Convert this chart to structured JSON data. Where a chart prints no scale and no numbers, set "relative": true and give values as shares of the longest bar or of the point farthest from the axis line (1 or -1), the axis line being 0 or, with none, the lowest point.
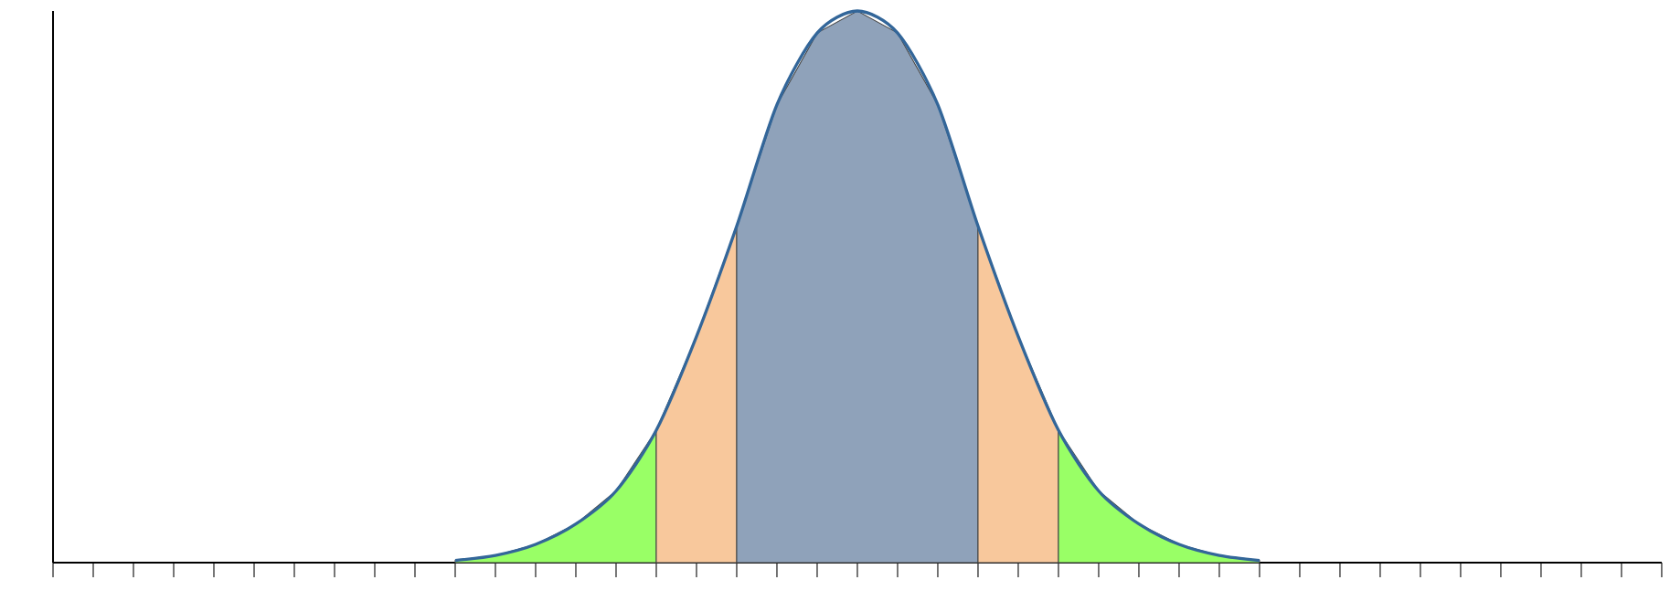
{
  "chart_data": {
    "type": "line",
    "relative": true,
    "categories": [
      null,
      null,
      null,
      null,
      null,
      null,
      null,
      null,
      null,
      null,
      null,
      null,
      null,
      null,
      null,
      null,
      null,
      null,
      null,
      null,
      null,
      null,
      null,
      null,
      null,
      null,
      null,
      null,
      null,
      null,
      null,
      null,
      null,
      null,
      null,
      null,
      null,
      null,
      null,
      null,
      null
    ],
    "series": [
      {
        "type": "area",
        "color": "#99ff66",
        "values": [
          null,
          null,
          null,
          null,
          null,
          null,
          null,
          null,
          null,
          null,
          0.004,
          0.013,
          0.033,
          0.07,
          0.13,
          0.24,
          null,
          null,
          null,
          null,
          null,
          null,
          null,
          null,
          null,
          null,
          null,
          null,
          null,
          null,
          null,
          null,
          null,
          null,
          null,
          null,
          null,
          null,
          null,
          null,
          null
        ]
      },
      {
        "type": "area",
        "color": "#f8c89c",
        "values": [
          null,
          null,
          null,
          null,
          null,
          null,
          null,
          null,
          null,
          null,
          null,
          null,
          null,
          null,
          null,
          0.24,
          0.41,
          0.61,
          null,
          null,
          null,
          null,
          null,
          null,
          null,
          null,
          null,
          null,
          null,
          null,
          null,
          null,
          null,
          null,
          null,
          null,
          null,
          null,
          null,
          null,
          null
        ]
      },
      {
        "type": "area",
        "color": "#8fa2ba",
        "values": [
          null,
          null,
          null,
          null,
          null,
          null,
          null,
          null,
          null,
          null,
          null,
          null,
          null,
          null,
          null,
          null,
          null,
          0.61,
          0.83,
          0.96,
          1.0,
          0.96,
          0.83,
          0.61,
          null,
          null,
          null,
          null,
          null,
          null,
          null,
          null,
          null,
          null,
          null,
          null,
          null,
          null,
          null,
          null,
          null
        ]
      },
      {
        "type": "area",
        "color": "#f8c89c",
        "values": [
          null,
          null,
          null,
          null,
          null,
          null,
          null,
          null,
          null,
          null,
          null,
          null,
          null,
          null,
          null,
          null,
          null,
          null,
          null,
          null,
          null,
          null,
          null,
          0.61,
          0.41,
          0.24,
          null,
          null,
          null,
          null,
          null,
          null,
          null,
          null,
          null,
          null,
          null,
          null,
          null,
          null,
          null
        ]
      },
      {
        "type": "area",
        "color": "#99ff66",
        "values": [
          null,
          null,
          null,
          null,
          null,
          null,
          null,
          null,
          null,
          null,
          null,
          null,
          null,
          null,
          null,
          null,
          null,
          null,
          null,
          null,
          null,
          null,
          null,
          null,
          null,
          0.24,
          0.13,
          0.07,
          0.033,
          0.013,
          0.004,
          null,
          null,
          null,
          null,
          null,
          null,
          null,
          null,
          null,
          null
        ]
      },
      {
        "color": "#336699",
        "values": [
          null,
          null,
          null,
          null,
          null,
          null,
          null,
          null,
          null,
          null,
          0.004,
          0.013,
          0.033,
          0.07,
          0.13,
          0.24,
          0.41,
          0.61,
          0.83,
          0.96,
          1.0,
          0.96,
          0.83,
          0.61,
          0.41,
          0.24,
          0.13,
          0.07,
          0.033,
          0.013,
          0.004,
          null,
          null,
          null,
          null,
          null,
          null,
          null,
          null,
          null,
          null
        ]
      }
    ]
  }
}
